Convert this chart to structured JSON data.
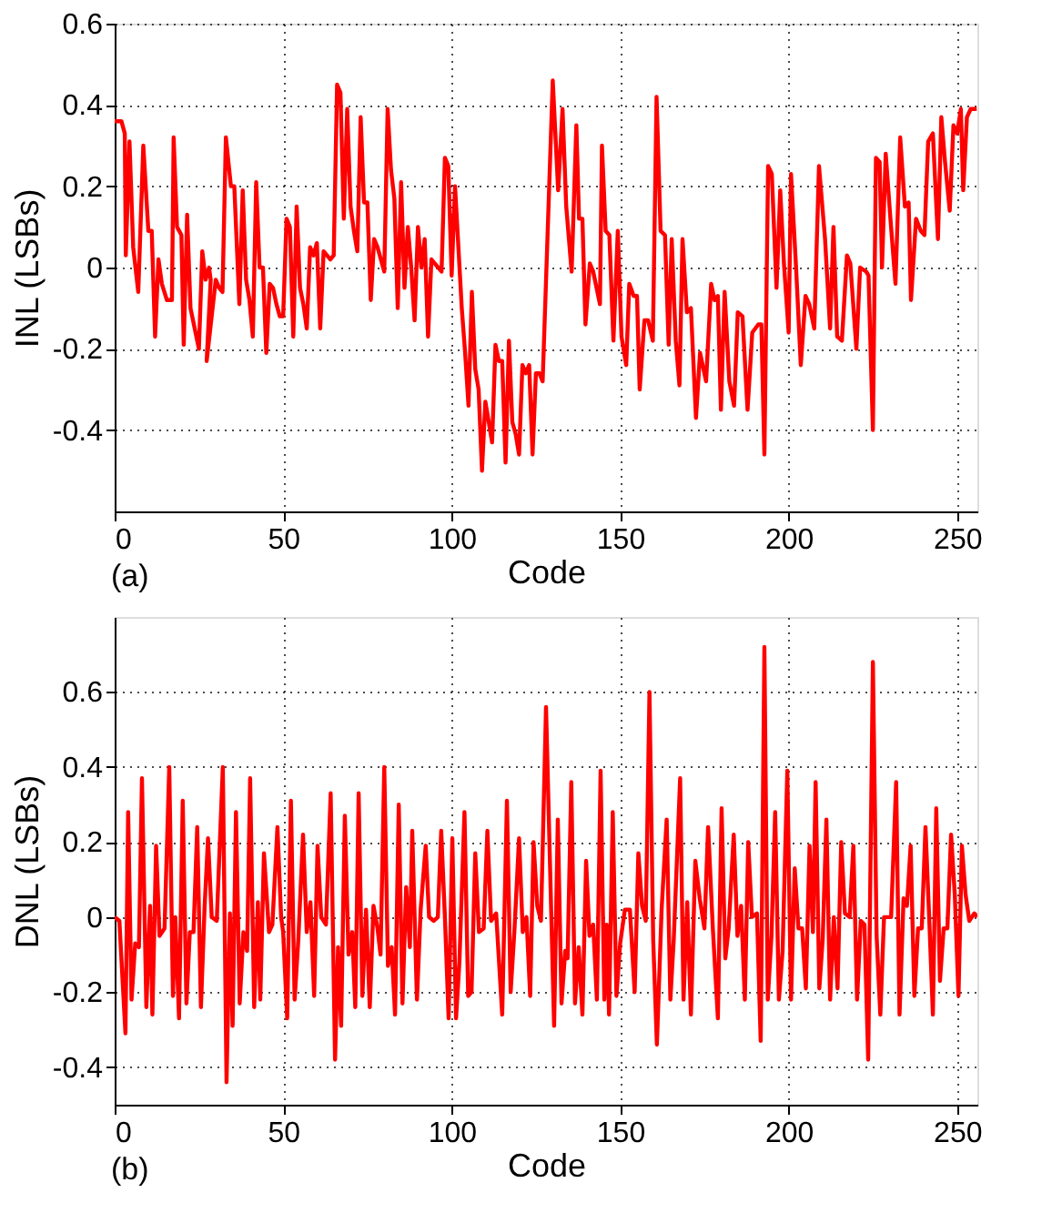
{
  "chart_data": [
    {
      "type": "line",
      "xlabel": "Code",
      "ylabel": "INL (LSBs)",
      "annotations": [
        "(a)"
      ],
      "grid": true,
      "xlim": [
        0,
        256
      ],
      "xticks": [
        0,
        50,
        100,
        150,
        200,
        250
      ],
      "ylim": [
        -0.6,
        0.6
      ],
      "yticks": [
        -0.4,
        -0.2,
        0,
        0.2,
        0.4,
        0.6
      ],
      "x": [
        0,
        2,
        3,
        3.3,
        4.4,
        5.5,
        7,
        8.5,
        10,
        11,
        12,
        13,
        14,
        15.5,
        17,
        17.5,
        18.5,
        19.8,
        20.5,
        21.5,
        22.5,
        23.5,
        25,
        26,
        27,
        28,
        28.5,
        27.3,
        30,
        31,
        32,
        33,
        34.5,
        35.5,
        37,
        38,
        39,
        40,
        41,
        42,
        43,
        44,
        45,
        46,
        47,
        48,
        49,
        50,
        51,
        52,
        53,
        54,
        55,
        56,
        57,
        58,
        59,
        60,
        61,
        62,
        63,
        64,
        65,
        66,
        67,
        68,
        69,
        70,
        71,
        72,
        73,
        74,
        75,
        76,
        77,
        78,
        79,
        80,
        81,
        82,
        83,
        84,
        85,
        86,
        87,
        88,
        89,
        90,
        91,
        92,
        93,
        94,
        95,
        96,
        97,
        98,
        99,
        100,
        101,
        102,
        103,
        104,
        105,
        106,
        107,
        108,
        109,
        110,
        111,
        112,
        113,
        114,
        115,
        116,
        117,
        118,
        119,
        120,
        121,
        122,
        123,
        124,
        125,
        126,
        127,
        130,
        131.6,
        132.9,
        134,
        135.6,
        137,
        137.8,
        138.8,
        139.7,
        141,
        142,
        144,
        144.6,
        145.7,
        146.8,
        148,
        149.3,
        150.4,
        151.8,
        152.7,
        154,
        155,
        155.8,
        157.2,
        158.3,
        159.7,
        160.8,
        162,
        163.3,
        164.4,
        165.3,
        166.5,
        167.6,
        168.5,
        169.8,
        171,
        172.5,
        173.7,
        175.5,
        177,
        178,
        179,
        179.9,
        181,
        182.4,
        183.8,
        184.9,
        186.3,
        187.8,
        189.2,
        191,
        191.9,
        192.8,
        193.9,
        195,
        196.4,
        197.5,
        198.6,
        200,
        200.7,
        202.2,
        203.6,
        205,
        206.1,
        207.6,
        209,
        210.8,
        212.3,
        213.3,
        214.4,
        215.8,
        217.3,
        218.3,
        220.1,
        221.2,
        223,
        223.7,
        225,
        225.9,
        227,
        227.7,
        228.8,
        230.2,
        231.7,
        233.1,
        234.5,
        235.6,
        236.3,
        237.8,
        239.2,
        240.3,
        241.4,
        242.8,
        244.3,
        245.3,
        246.4,
        247.8,
        248.9,
        250,
        251.1,
        251.8,
        252.9,
        254,
        255.8
      ],
      "series": [
        {
          "color": "#ff0000",
          "values": [
            0.36,
            0.36,
            0.33,
            0.03,
            0.31,
            0.05,
            -0.06,
            0.3,
            0.09,
            0.09,
            -0.17,
            0.02,
            -0.04,
            -0.08,
            -0.08,
            0.32,
            0.1,
            0.08,
            -0.19,
            0.13,
            -0.1,
            -0.14,
            -0.2,
            0.04,
            -0.03,
            0.0,
            -0.03,
            -0.23,
            -0.03,
            -0.05,
            -0.06,
            0.32,
            0.2,
            0.2,
            -0.09,
            0.19,
            -0.03,
            -0.08,
            -0.17,
            0.21,
            0.0,
            0.0,
            -0.21,
            -0.04,
            -0.05,
            -0.09,
            -0.12,
            -0.12,
            0.12,
            0.1,
            -0.17,
            0.15,
            -0.05,
            -0.09,
            -0.15,
            0.05,
            0.03,
            0.06,
            -0.15,
            0.04,
            0.03,
            0.02,
            0.03,
            0.45,
            0.43,
            0.12,
            0.39,
            0.15,
            0.09,
            0.04,
            0.37,
            0.16,
            0.16,
            -0.08,
            0.07,
            0.05,
            0.02,
            -0.01,
            0.39,
            0.24,
            0.17,
            -0.1,
            0.21,
            -0.05,
            0.1,
            0.0,
            -0.13,
            0.1,
            0.0,
            0.07,
            -0.17,
            0.02,
            0.01,
            0.0,
            -0.01,
            0.27,
            0.25,
            -0.02,
            0.2,
            0.05,
            -0.1,
            -0.21,
            -0.34,
            -0.06,
            -0.25,
            -0.3,
            -0.5,
            -0.33,
            -0.38,
            -0.43,
            -0.19,
            -0.23,
            -0.23,
            -0.48,
            -0.18,
            -0.38,
            -0.41,
            -0.46,
            -0.24,
            -0.26,
            -0.24,
            -0.46,
            -0.26,
            -0.26,
            -0.28,
            0.46,
            0.19,
            0.39,
            0.15,
            -0.01,
            0.35,
            0.12,
            0.12,
            -0.14,
            0.01,
            -0.01,
            -0.09,
            0.3,
            0.09,
            0.08,
            -0.18,
            0.09,
            -0.17,
            -0.24,
            -0.04,
            -0.07,
            -0.07,
            -0.3,
            -0.13,
            -0.13,
            -0.18,
            0.42,
            0.09,
            0.08,
            -0.19,
            0.07,
            -0.18,
            -0.29,
            0.07,
            -0.11,
            -0.1,
            -0.37,
            -0.21,
            -0.28,
            -0.04,
            -0.08,
            -0.07,
            -0.35,
            -0.06,
            -0.28,
            -0.34,
            -0.11,
            -0.12,
            -0.35,
            -0.16,
            -0.14,
            -0.14,
            -0.46,
            0.25,
            0.23,
            -0.05,
            0.19,
            0.01,
            -0.16,
            0.23,
            0.0,
            -0.24,
            -0.07,
            -0.09,
            -0.15,
            0.25,
            0.07,
            -0.15,
            0.1,
            -0.17,
            -0.18,
            0.03,
            0.01,
            -0.2,
            0.0,
            -0.01,
            -0.02,
            -0.4,
            0.27,
            0.26,
            0.0,
            0.28,
            0.12,
            -0.04,
            0.32,
            0.15,
            0.16,
            -0.08,
            0.12,
            0.09,
            0.08,
            0.31,
            0.33,
            0.07,
            0.37,
            0.26,
            0.14,
            0.35,
            0.33,
            0.39,
            0.19,
            0.37,
            0.39,
            0.39
          ]
        }
      ]
    },
    {
      "type": "line",
      "xlabel": "Code",
      "ylabel": "DNL (LSBs)",
      "annotations": [
        "(b)"
      ],
      "grid": true,
      "xlim": [
        0,
        256
      ],
      "xticks": [
        0,
        50,
        100,
        150,
        200,
        250
      ],
      "ylim": [
        -0.5,
        0.8
      ],
      "yticks": [
        -0.4,
        -0.2,
        0,
        0.2,
        0.4,
        0.6
      ],
      "x": [
        0,
        1.4,
        3.2,
        4,
        5,
        6.1,
        7.2,
        8.1,
        9.4,
        10.5,
        11.2,
        12.3,
        13.3,
        14.8,
        16.2,
        17.3,
        18,
        19.1,
        20.2,
        21.3,
        22.3,
        23.4,
        24.5,
        25.6,
        26.7,
        27.7,
        28.8,
        30.3,
        32.1,
        33.2,
        34.2,
        35,
        36,
        37.1,
        38.2,
        39.3,
        40.2,
        41.4,
        42.5,
        43.2,
        44.3,
        45.8,
        46.8,
        48.3,
        49.4,
        50,
        51.2,
        52.3,
        53.4,
        54.5,
        55.9,
        57,
        58.1,
        59.2,
        60.2,
        61.3,
        62.7,
        64.1,
        65.4,
        66.3,
        67.2,
        68.3,
        69.4,
        70.5,
        71.4,
        72.4,
        73.5,
        74.6,
        75.7,
        76.8,
        78,
        78.9,
        80,
        81.1,
        82.2,
        83.2,
        84.3,
        85.4,
        86.5,
        87.6,
        88.3,
        89.7,
        90.8,
        92.3,
        93.3,
        94.7,
        95.9,
        96.9,
        98,
        99.1,
        100.2,
        101.3,
        102.3,
        103.8,
        104.9,
        105.9,
        107,
        108.1,
        109.5,
        110.6,
        111.7,
        113.2,
        115,
        116.4,
        117.5,
        118.6,
        120,
        121.1,
        122.2,
        123.3,
        124.3,
        125.4,
        126.5,
        128,
        130.4,
        131.5,
        132.6,
        133.7,
        134.4,
        135.5,
        136.6,
        137.7,
        138.8,
        139.9,
        140.9,
        142,
        143.1,
        144.2,
        145.3,
        146,
        146.7,
        147.8,
        148.9,
        150,
        151.4,
        152.9,
        154.3,
        155.4,
        156.5,
        157.6,
        158.7,
        159.8,
        160.9,
        162.3,
        163.8,
        164.9,
        165.9,
        167.8,
        168.8,
        169.9,
        171,
        172.3,
        173.6,
        175,
        176.1,
        177.5,
        179,
        180.1,
        181.2,
        182.2,
        183.7,
        184.8,
        185.9,
        187,
        188,
        189.1,
        190.6,
        191.7,
        192.8,
        193.8,
        194.9,
        196,
        197.1,
        198.2,
        199.6,
        200.7,
        201.8,
        202.9,
        204,
        205.1,
        206.2,
        207.2,
        208,
        209.1,
        210.1,
        211.2,
        212.3,
        213.4,
        214.5,
        215.6,
        216.7,
        218.1,
        219.2,
        220.3,
        221.4,
        222.5,
        223.6,
        225,
        226.1,
        227.2,
        228.3,
        229.3,
        230.4,
        231.9,
        232.9,
        234.1,
        235.1,
        236.2,
        237.3,
        238.4,
        239.5,
        240.6,
        241.7,
        242.8,
        243.8,
        244.9,
        246,
        247.1,
        248.2,
        249.3,
        250.4,
        251.4,
        252.5,
        253.6,
        255.1,
        256
      ],
      "series": [
        {
          "color": "#ff0000",
          "values": [
            0,
            -0.01,
            -0.31,
            0.28,
            -0.22,
            -0.07,
            -0.08,
            0.37,
            -0.24,
            0.03,
            -0.26,
            0.19,
            -0.05,
            -0.03,
            0.4,
            -0.21,
            0,
            -0.27,
            0.31,
            -0.23,
            -0.04,
            -0.04,
            0.24,
            -0.24,
            0.03,
            0.21,
            0,
            -0.01,
            0.4,
            -0.44,
            0.01,
            -0.29,
            0.28,
            -0.23,
            -0.04,
            -0.09,
            0.37,
            -0.24,
            0.04,
            -0.22,
            0.17,
            -0.04,
            -0.02,
            0.24,
            0,
            -0.04,
            -0.27,
            0.31,
            -0.22,
            -0.06,
            0.22,
            -0.04,
            0.04,
            -0.21,
            0.19,
            0,
            -0.02,
            0.33,
            -0.38,
            -0.08,
            -0.29,
            0.27,
            -0.1,
            -0.04,
            -0.24,
            0.33,
            -0.21,
            0.02,
            -0.24,
            0.03,
            -0.03,
            -0.1,
            0.4,
            -0.13,
            -0.08,
            -0.26,
            0.3,
            -0.23,
            0.08,
            -0.08,
            0.23,
            -0.22,
            0.02,
            0.19,
            0,
            -0.01,
            0,
            0.23,
            0,
            -0.27,
            0.21,
            -0.27,
            -0.12,
            0.28,
            -0.21,
            -0.2,
            0.17,
            -0.04,
            -0.03,
            0.23,
            -0.01,
            0.01,
            -0.26,
            0.31,
            -0.2,
            -0.04,
            0.21,
            -0.04,
            0,
            -0.21,
            0.2,
            0.03,
            -0.01,
            0.56,
            -0.29,
            0.26,
            -0.23,
            -0.09,
            -0.11,
            0.36,
            -0.23,
            -0.08,
            -0.26,
            0.15,
            -0.05,
            -0.02,
            -0.22,
            0.39,
            -0.22,
            -0.02,
            -0.26,
            0.28,
            -0.21,
            -0.07,
            0.02,
            0.02,
            -0.2,
            0.17,
            0.03,
            -0.01,
            0.6,
            -0.06,
            -0.34,
            0.02,
            0.26,
            -0.22,
            -0.06,
            0.37,
            -0.22,
            0.04,
            -0.26,
            0.15,
            0.05,
            -0.03,
            0.24,
            -0.03,
            -0.27,
            0.29,
            -0.11,
            -0.03,
            0.22,
            -0.05,
            0.03,
            -0.22,
            0.2,
            0,
            0.01,
            -0.33,
            0.72,
            -0.22,
            -0.05,
            0.28,
            -0.22,
            -0.09,
            0.39,
            -0.22,
            0.13,
            -0.03,
            -0.03,
            -0.19,
            0.19,
            -0.04,
            0.36,
            -0.19,
            -0.06,
            0.26,
            -0.22,
            0,
            -0.19,
            0.2,
            0.01,
            0,
            0.19,
            -0.22,
            -0.01,
            -0.02,
            -0.38,
            0.68,
            -0.05,
            -0.26,
            0,
            0,
            0,
            0.36,
            -0.26,
            0.05,
            0.03,
            0.19,
            -0.21,
            -0.03,
            -0.03,
            0.24,
            0,
            -0.26,
            0.29,
            -0.17,
            -0.03,
            -0.03,
            0.22,
            0.06,
            -0.21,
            0.19,
            0.06,
            -0.01,
            0.01,
            0
          ]
        }
      ]
    }
  ]
}
